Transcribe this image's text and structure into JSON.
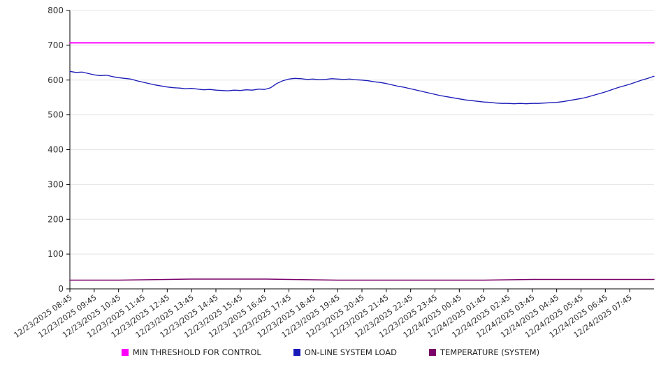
{
  "chart_data": {
    "type": "line",
    "title": "",
    "xlabel": "",
    "ylabel": "",
    "ylim": [
      0,
      800
    ],
    "grid": true,
    "legend_position": "bottom",
    "colors": {
      "grid": "#e4e4e4",
      "axis": "#000000",
      "text": "#333333",
      "background": "#ffffff"
    },
    "y_ticks": [
      0,
      100,
      200,
      300,
      400,
      500,
      600,
      700,
      800
    ],
    "x_tick_labels": [
      "12/23/2025 08:45",
      "12/23/2025 09:45",
      "12/23/2025 10:45",
      "12/23/2025 11:45",
      "12/23/2025 12:45",
      "12/23/2025 13:45",
      "12/23/2025 14:45",
      "12/23/2025 15:45",
      "12/23/2025 16:45",
      "12/23/2025 17:45",
      "12/23/2025 18:45",
      "12/23/2025 19:45",
      "12/23/2025 20:45",
      "12/23/2025 21:45",
      "12/23/2025 22:45",
      "12/23/2025 23:45",
      "12/24/2025 00:45",
      "12/24/2025 01:45",
      "12/24/2025 02:45",
      "12/24/2025 03:45",
      "12/24/2025 04:45",
      "12/24/2025 05:45",
      "12/24/2025 06:45",
      "12/24/2025 07:45"
    ],
    "series": [
      {
        "name": "MIN THRESHOLD FOR CONTROL",
        "color": "#ff00ff",
        "stroke_width": 2,
        "values": [
          707,
          707
        ]
      },
      {
        "name": "ON-LINE SYSTEM LOAD",
        "color": "#1a1ab8",
        "stroke_width": 1.3,
        "values": [
          625,
          622,
          623,
          619,
          615,
          613,
          614,
          610,
          607,
          605,
          603,
          598,
          594,
          590,
          586,
          583,
          580,
          578,
          577,
          575,
          576,
          574,
          572,
          573,
          571,
          570,
          569,
          571,
          570,
          572,
          571,
          574,
          573,
          578,
          590,
          598,
          603,
          605,
          604,
          602,
          603,
          601,
          602,
          604,
          603,
          602,
          603,
          601,
          600,
          598,
          595,
          593,
          590,
          586,
          582,
          579,
          575,
          571,
          567,
          563,
          559,
          555,
          552,
          549,
          546,
          543,
          541,
          539,
          537,
          536,
          534,
          533,
          533,
          532,
          533,
          532,
          533,
          533,
          534,
          535,
          536,
          538,
          541,
          544,
          547,
          551,
          556,
          561,
          566,
          572,
          578,
          583,
          588,
          594,
          600,
          605,
          611
        ]
      },
      {
        "name": "TEMPERATURE (SYSTEM)",
        "color": "#7a006a",
        "stroke_width": 1.5,
        "values": [
          25,
          25,
          25,
          26,
          27,
          28,
          28,
          28,
          28,
          27,
          26,
          25,
          25,
          25,
          25,
          25,
          25,
          25,
          26,
          27,
          27,
          27,
          27,
          27,
          27
        ]
      }
    ]
  }
}
